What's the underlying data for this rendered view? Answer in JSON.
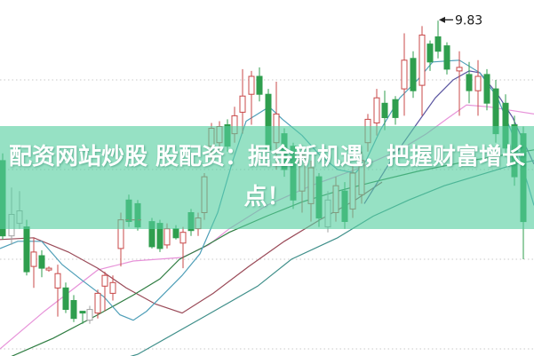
{
  "banner": {
    "line1": "配资网站炒股 股配资：掘金新机遇，把握财富增长",
    "line2": "点！",
    "overlay_color": "#56CEA0",
    "overlay_opacity": 0.62,
    "text_color": "#ffffff"
  },
  "chart_data": {
    "type": "candlestick",
    "title": "",
    "xlabel": "",
    "ylabel": "",
    "legend": "none",
    "price_axis": {
      "gridline_prices": [
        9.5,
        9.0,
        8.5,
        8.0
      ],
      "ylim": [
        7.95,
        9.97
      ],
      "grid_style": "dotted horizontal, no visible tick labels"
    },
    "annotation": {
      "label": "9.83",
      "price": 9.83,
      "x": 493
    },
    "dash_marker": {
      "x1": 141,
      "x2": 160,
      "price": 8.72
    },
    "colors": {
      "up": "#c84848",
      "down": "#2f9e4e",
      "neutral": "#a0a0a0",
      "grid": "#c8c8c8",
      "annotation_text": "#1a1a1a",
      "background": "#ffffff"
    },
    "candle_columns": [
      "x",
      "open",
      "high",
      "low",
      "close",
      "type"
    ],
    "candle_type_legend": {
      "u": "up (red hollow)",
      "d": "down (green solid)",
      "n": "neutral (gray hollow)"
    },
    "candles": [
      [
        3,
        9.05,
        9.09,
        8.61,
        8.63,
        "d"
      ],
      [
        13,
        8.63,
        8.9,
        8.58,
        8.75,
        "n"
      ],
      [
        22,
        8.7,
        8.88,
        8.67,
        8.77,
        "n"
      ],
      [
        30,
        8.68,
        8.72,
        8.41,
        8.43,
        "d"
      ],
      [
        38,
        8.46,
        8.62,
        8.34,
        8.54,
        "u"
      ],
      [
        47,
        8.52,
        8.55,
        8.4,
        8.45,
        "d"
      ],
      [
        55,
        8.44,
        8.46,
        8.43,
        8.45,
        "u"
      ],
      [
        65,
        8.34,
        8.47,
        8.18,
        8.42,
        "u"
      ],
      [
        74,
        8.34,
        8.37,
        8.2,
        8.22,
        "d"
      ],
      [
        83,
        8.27,
        8.3,
        8.15,
        8.17,
        "d"
      ],
      [
        93,
        8.21,
        8.21,
        8.14,
        8.2,
        "d"
      ],
      [
        101,
        8.16,
        8.24,
        8.14,
        8.22,
        "n"
      ],
      [
        110,
        8.2,
        8.33,
        8.17,
        8.31,
        "u"
      ],
      [
        118,
        8.35,
        8.43,
        8.21,
        8.41,
        "u"
      ],
      [
        127,
        8.31,
        8.41,
        8.27,
        8.37,
        "u"
      ],
      [
        136,
        8.56,
        8.76,
        8.46,
        8.72,
        "u"
      ],
      [
        145,
        8.83,
        8.86,
        8.68,
        8.71,
        "d"
      ],
      [
        155,
        8.81,
        8.83,
        8.66,
        8.68,
        "d"
      ],
      [
        171,
        8.71,
        8.73,
        8.56,
        8.57,
        "d"
      ],
      [
        180,
        8.7,
        8.72,
        8.54,
        8.56,
        "d"
      ],
      [
        188,
        8.58,
        8.7,
        8.56,
        8.67,
        "u"
      ],
      [
        198,
        8.67,
        8.69,
        8.61,
        8.62,
        "d"
      ],
      [
        206,
        8.59,
        8.68,
        8.45,
        8.65,
        "u"
      ],
      [
        215,
        8.76,
        8.78,
        8.63,
        8.66,
        "d"
      ],
      [
        223,
        8.67,
        8.76,
        8.63,
        8.73,
        "u"
      ],
      [
        230,
        8.76,
        8.98,
        8.72,
        8.96,
        "u"
      ],
      [
        238,
        9.13,
        9.26,
        9.05,
        9.23,
        "u"
      ],
      [
        247,
        9.15,
        9.27,
        9.09,
        9.24,
        "u"
      ],
      [
        256,
        9.25,
        9.28,
        9.1,
        9.13,
        "d"
      ],
      [
        264,
        9.2,
        9.35,
        9.15,
        9.3,
        "u"
      ],
      [
        273,
        9.32,
        9.56,
        9.2,
        9.41,
        "u"
      ],
      [
        283,
        9.42,
        9.55,
        9.25,
        9.52,
        "u"
      ],
      [
        292,
        9.52,
        9.57,
        9.38,
        9.42,
        "d"
      ],
      [
        302,
        9.42,
        9.45,
        9.08,
        9.11,
        "d"
      ],
      [
        311,
        9.15,
        9.49,
        9.0,
        9.31,
        "u"
      ],
      [
        320,
        9.2,
        9.23,
        8.96,
        9.0,
        "d"
      ],
      [
        330,
        9.13,
        9.15,
        8.78,
        8.83,
        "d"
      ],
      [
        340,
        8.88,
        9.13,
        8.76,
        9.08,
        "u"
      ],
      [
        350,
        8.81,
        9.05,
        8.71,
        9.01,
        "u"
      ],
      [
        359,
        8.96,
        8.98,
        8.68,
        8.73,
        "d"
      ],
      [
        369,
        8.68,
        8.88,
        8.65,
        8.83,
        "n"
      ],
      [
        378,
        8.76,
        8.96,
        8.71,
        8.91,
        "u"
      ],
      [
        388,
        8.88,
        8.93,
        8.67,
        8.71,
        "d"
      ],
      [
        397,
        8.78,
        9.03,
        8.73,
        8.98,
        "u"
      ],
      [
        407,
        8.86,
        9.1,
        8.81,
        9.05,
        "u"
      ],
      [
        414,
        9.15,
        9.31,
        9.1,
        9.28,
        "u"
      ],
      [
        424,
        9.26,
        9.45,
        9.19,
        9.4,
        "u"
      ],
      [
        433,
        9.37,
        9.44,
        9.22,
        9.29,
        "d"
      ],
      [
        445,
        9.39,
        9.41,
        9.25,
        9.29,
        "d"
      ],
      [
        455,
        9.45,
        9.76,
        9.3,
        9.61,
        "u"
      ],
      [
        465,
        9.62,
        9.66,
        9.4,
        9.44,
        "d"
      ],
      [
        475,
        9.47,
        9.8,
        9.3,
        9.75,
        "u"
      ],
      [
        484,
        9.7,
        9.72,
        9.55,
        9.6,
        "d"
      ],
      [
        493,
        9.74,
        9.83,
        9.62,
        9.66,
        "d"
      ],
      [
        503,
        9.69,
        9.71,
        9.53,
        9.56,
        "d"
      ],
      [
        517,
        9.55,
        9.66,
        9.3,
        9.57,
        "u"
      ],
      [
        528,
        9.53,
        9.6,
        9.37,
        9.44,
        "d"
      ],
      [
        538,
        9.44,
        9.61,
        9.3,
        9.52,
        "u"
      ],
      [
        548,
        9.53,
        9.56,
        9.33,
        9.37,
        "d"
      ],
      [
        558,
        9.45,
        9.5,
        9.15,
        9.2,
        "d"
      ],
      [
        569,
        9.37,
        9.42,
        9.07,
        9.12,
        "d"
      ],
      [
        579,
        9.25,
        9.3,
        8.91,
        8.96,
        "d"
      ],
      [
        589,
        9.2,
        9.24,
        8.5,
        8.71,
        "d"
      ]
    ],
    "ma_lines": [
      {
        "name": "pink",
        "color": "#e793d9",
        "points": [
          [
            0,
            8.0
          ],
          [
            50,
            8.21
          ],
          [
            110,
            8.44
          ],
          [
            150,
            8.49
          ],
          [
            205,
            8.51
          ],
          [
            235,
            8.58
          ],
          [
            258,
            8.67
          ],
          [
            300,
            8.8
          ],
          [
            350,
            8.91
          ],
          [
            400,
            9.0
          ],
          [
            450,
            9.11
          ],
          [
            480,
            9.2
          ],
          [
            505,
            9.29
          ],
          [
            525,
            9.36
          ],
          [
            550,
            9.35
          ],
          [
            575,
            9.33
          ],
          [
            601,
            9.31
          ]
        ]
      },
      {
        "name": "maroon",
        "color": "#9a4a58",
        "points": [
          [
            0,
            8.61
          ],
          [
            38,
            8.62
          ],
          [
            77,
            8.54
          ],
          [
            110,
            8.45
          ],
          [
            142,
            8.34
          ],
          [
            175,
            8.25
          ],
          [
            205,
            8.2
          ],
          [
            240,
            8.31
          ],
          [
            280,
            8.46
          ],
          [
            320,
            8.6
          ],
          [
            360,
            8.72
          ],
          [
            400,
            8.83
          ],
          [
            430,
            8.93
          ]
        ]
      },
      {
        "name": "purple",
        "color": "#5a55a0",
        "points": [
          [
            410,
            8.81
          ],
          [
            440,
            9.05
          ],
          [
            467,
            9.24
          ],
          [
            490,
            9.4
          ],
          [
            510,
            9.5
          ],
          [
            528,
            9.55
          ],
          [
            540,
            9.54
          ],
          [
            560,
            9.42
          ],
          [
            577,
            9.29
          ],
          [
            588,
            9.17
          ],
          [
            601,
            9.03
          ]
        ]
      },
      {
        "name": "long-green",
        "color": "#3f8f8a",
        "points": [
          [
            100,
            7.89
          ],
          [
            155,
            7.97
          ],
          [
            230,
            8.18
          ],
          [
            290,
            8.35
          ],
          [
            328,
            8.5
          ],
          [
            380,
            8.62
          ],
          [
            420,
            8.74
          ],
          [
            460,
            8.83
          ],
          [
            500,
            8.91
          ],
          [
            540,
            8.97
          ],
          [
            580,
            9.03
          ],
          [
            601,
            9.05
          ]
        ]
      },
      {
        "name": "dark-green",
        "color": "#2f7d42",
        "points": [
          [
            0,
            7.93
          ],
          [
            60,
            8.06
          ],
          [
            110,
            8.19
          ],
          [
            150,
            8.3
          ],
          [
            180,
            8.39
          ],
          [
            202,
            8.5
          ],
          [
            230,
            8.57
          ],
          [
            258,
            8.65
          ],
          [
            300,
            8.74
          ],
          [
            340,
            8.82
          ],
          [
            380,
            8.88
          ],
          [
            420,
            8.93
          ],
          [
            470,
            8.99
          ],
          [
            530,
            9.05
          ],
          [
            601,
            9.11
          ]
        ]
      },
      {
        "name": "teal",
        "color": "#4f9fb8",
        "points": [
          [
            0,
            8.56
          ],
          [
            20,
            8.6
          ],
          [
            47,
            8.6
          ],
          [
            70,
            8.47
          ],
          [
            93,
            8.38
          ],
          [
            117,
            8.29
          ],
          [
            135,
            8.19
          ],
          [
            150,
            8.16
          ],
          [
            165,
            8.21
          ],
          [
            185,
            8.31
          ],
          [
            205,
            8.41
          ],
          [
            225,
            8.53
          ],
          [
            245,
            8.76
          ],
          [
            262,
            9.05
          ],
          [
            277,
            9.27
          ],
          [
            303,
            9.35
          ],
          [
            318,
            9.28
          ],
          [
            340,
            9.19
          ],
          [
            360,
            9.08
          ],
          [
            380,
            9.0
          ],
          [
            400,
            8.98
          ],
          [
            412,
            9.05
          ],
          [
            428,
            9.22
          ],
          [
            450,
            9.4
          ],
          [
            470,
            9.5
          ],
          [
            487,
            9.6
          ],
          [
            517,
            9.61
          ],
          [
            540,
            9.54
          ],
          [
            560,
            9.4
          ],
          [
            575,
            9.22
          ],
          [
            588,
            9.02
          ],
          [
            601,
            8.8
          ]
        ]
      }
    ]
  }
}
